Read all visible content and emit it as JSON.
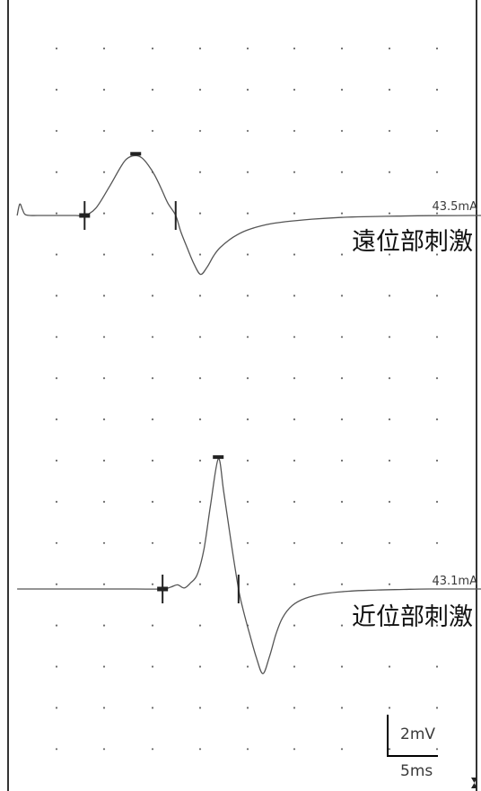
{
  "chart_data": [
    {
      "type": "line",
      "label": "遠位部刺激",
      "stimulus_intensity": "43.5mA",
      "markers": {
        "onset_ms": 7.3,
        "negative_peak_ms": 15.1,
        "baseline_cross_ms": 21.2
      },
      "x": [
        -3.0,
        -2.6,
        -2.2,
        -1.8,
        -1.0,
        0,
        2,
        4,
        6,
        7.3,
        9,
        11,
        13,
        14,
        15.1,
        16,
        17,
        18,
        19,
        20,
        21.2,
        22,
        23,
        24,
        25,
        26,
        27,
        28,
        30,
        32,
        35,
        38,
        42,
        46,
        50,
        55,
        60,
        70,
        80,
        90
      ],
      "y": [
        0.0,
        0.55,
        0.3,
        0.05,
        0.0,
        0.0,
        0.0,
        0.0,
        0.0,
        0.0,
        0.35,
        1.35,
        2.45,
        2.8,
        2.9,
        2.8,
        2.45,
        1.95,
        1.3,
        0.6,
        0.0,
        -0.8,
        -1.6,
        -2.35,
        -2.85,
        -2.5,
        -1.95,
        -1.55,
        -1.05,
        -0.72,
        -0.45,
        -0.3,
        -0.18,
        -0.1,
        -0.06,
        -0.03,
        -0.01,
        0.0,
        0.0,
        0.0
      ]
    },
    {
      "type": "line",
      "label": "近位部刺激",
      "stimulus_intensity": "43.1mA",
      "markers": {
        "onset_ms": 19.2,
        "negative_peak_ms": 27.7,
        "baseline_cross_ms": 30.8
      },
      "x": [
        -3.0,
        0,
        5,
        10,
        15,
        19.2,
        20.5,
        21.5,
        22.5,
        23.5,
        24.5,
        25.5,
        26.5,
        27.7,
        28.5,
        29.5,
        30.8,
        31.5,
        32.5,
        33.5,
        34.5,
        35.5,
        36.5,
        37.5,
        39,
        41,
        44,
        48,
        52,
        56,
        60,
        70,
        80,
        90
      ],
      "y": [
        0.0,
        0.0,
        0.0,
        0.0,
        0.0,
        0.0,
        0.1,
        0.2,
        0.05,
        0.3,
        0.7,
        1.9,
        4.0,
        6.3,
        4.8,
        2.6,
        0.0,
        -1.0,
        -2.2,
        -3.3,
        -4.1,
        -3.3,
        -2.2,
        -1.4,
        -0.8,
        -0.45,
        -0.22,
        -0.1,
        -0.05,
        -0.02,
        0.0,
        0.0,
        0.0,
        0.0
      ]
    }
  ],
  "scale_bar": {
    "amplitude": "2mV",
    "time": "5ms"
  },
  "colors": {
    "trace": "#555555",
    "grid_dot": "#6a6a6a",
    "marker": "#222222",
    "frame": "#000000"
  }
}
